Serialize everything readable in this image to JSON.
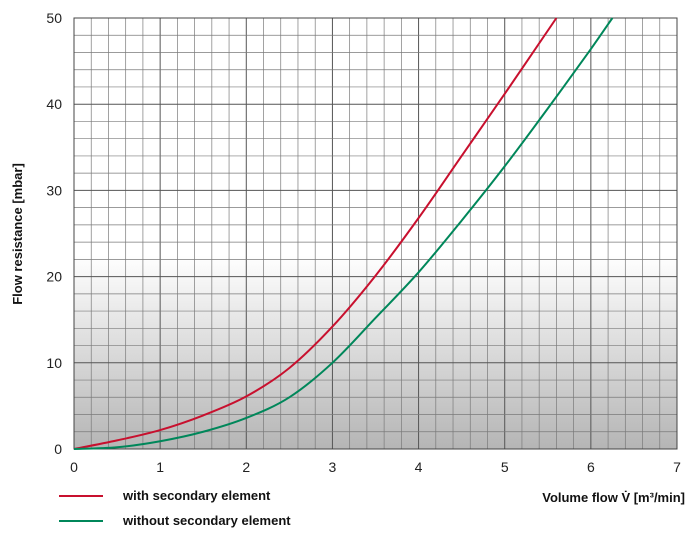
{
  "chart_data": {
    "type": "line",
    "title": "",
    "xlabel": "Volume flow V̇ [m³/min]",
    "ylabel": "Flow resistance [mbar]",
    "xlim": [
      0,
      7
    ],
    "ylim": [
      0,
      50
    ],
    "x_ticks": [
      "0",
      "1",
      "2",
      "3",
      "4",
      "5",
      "6",
      "7"
    ],
    "y_ticks": [
      "0",
      "10",
      "20",
      "30",
      "40",
      "50"
    ],
    "grid": true,
    "legend_placement": "bottom-left",
    "series": [
      {
        "name": "with secondary element",
        "color": "#c8102e",
        "x": [
          0,
          0.5,
          1,
          1.5,
          2,
          2.5,
          3,
          3.5,
          4,
          4.5,
          5,
          5.6
        ],
        "y": [
          0,
          1,
          2.2,
          3.9,
          6.1,
          9.4,
          14.2,
          20.1,
          26.8,
          34.0,
          41.2,
          50
        ]
      },
      {
        "name": "without secondary element",
        "color": "#00875a",
        "x": [
          0,
          0.5,
          1,
          1.5,
          2,
          2.5,
          3,
          3.5,
          4,
          4.5,
          5,
          5.5,
          6,
          6.25
        ],
        "y": [
          0,
          0.2,
          0.9,
          2.0,
          3.6,
          6.0,
          10.0,
          15.2,
          20.5,
          26.5,
          32.8,
          39.5,
          46.4,
          50
        ]
      }
    ]
  }
}
